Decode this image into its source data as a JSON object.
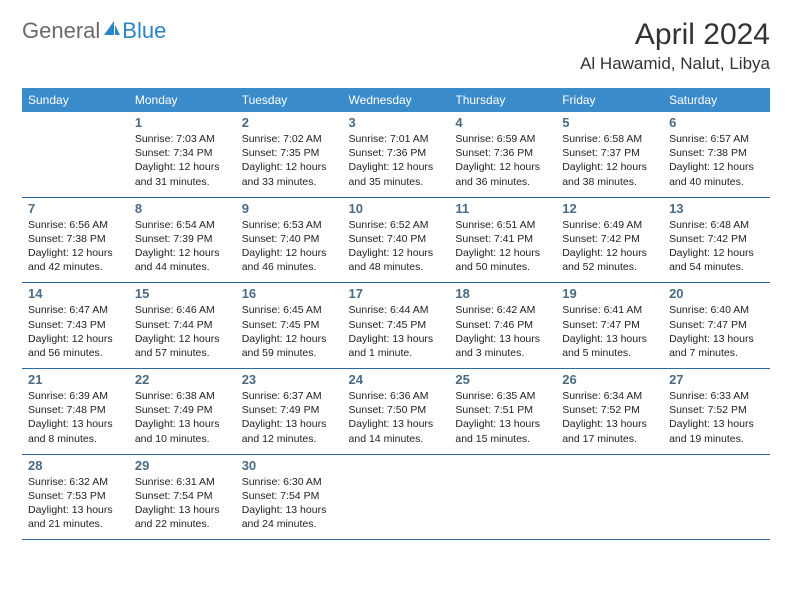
{
  "logo": {
    "text_general": "General",
    "text_blue": "Blue",
    "icon_color": "#2b85c5"
  },
  "title": {
    "month": "April 2024",
    "location": "Al Hawamid, Nalut, Libya"
  },
  "colors": {
    "header_bg": "#3a8bc9",
    "header_text": "#ffffff",
    "row_border": "#2b6a9e",
    "day_num": "#4a6a85",
    "body_text": "#222222",
    "title_text": "#333333",
    "logo_gray": "#6b6b6b",
    "logo_blue": "#2b85c5"
  },
  "weekdays": [
    "Sunday",
    "Monday",
    "Tuesday",
    "Wednesday",
    "Thursday",
    "Friday",
    "Saturday"
  ],
  "weeks": [
    [
      {
        "day": "",
        "sunrise": "",
        "sunset": "",
        "daylight1": "",
        "daylight2": ""
      },
      {
        "day": "1",
        "sunrise": "Sunrise: 7:03 AM",
        "sunset": "Sunset: 7:34 PM",
        "daylight1": "Daylight: 12 hours",
        "daylight2": "and 31 minutes."
      },
      {
        "day": "2",
        "sunrise": "Sunrise: 7:02 AM",
        "sunset": "Sunset: 7:35 PM",
        "daylight1": "Daylight: 12 hours",
        "daylight2": "and 33 minutes."
      },
      {
        "day": "3",
        "sunrise": "Sunrise: 7:01 AM",
        "sunset": "Sunset: 7:36 PM",
        "daylight1": "Daylight: 12 hours",
        "daylight2": "and 35 minutes."
      },
      {
        "day": "4",
        "sunrise": "Sunrise: 6:59 AM",
        "sunset": "Sunset: 7:36 PM",
        "daylight1": "Daylight: 12 hours",
        "daylight2": "and 36 minutes."
      },
      {
        "day": "5",
        "sunrise": "Sunrise: 6:58 AM",
        "sunset": "Sunset: 7:37 PM",
        "daylight1": "Daylight: 12 hours",
        "daylight2": "and 38 minutes."
      },
      {
        "day": "6",
        "sunrise": "Sunrise: 6:57 AM",
        "sunset": "Sunset: 7:38 PM",
        "daylight1": "Daylight: 12 hours",
        "daylight2": "and 40 minutes."
      }
    ],
    [
      {
        "day": "7",
        "sunrise": "Sunrise: 6:56 AM",
        "sunset": "Sunset: 7:38 PM",
        "daylight1": "Daylight: 12 hours",
        "daylight2": "and 42 minutes."
      },
      {
        "day": "8",
        "sunrise": "Sunrise: 6:54 AM",
        "sunset": "Sunset: 7:39 PM",
        "daylight1": "Daylight: 12 hours",
        "daylight2": "and 44 minutes."
      },
      {
        "day": "9",
        "sunrise": "Sunrise: 6:53 AM",
        "sunset": "Sunset: 7:40 PM",
        "daylight1": "Daylight: 12 hours",
        "daylight2": "and 46 minutes."
      },
      {
        "day": "10",
        "sunrise": "Sunrise: 6:52 AM",
        "sunset": "Sunset: 7:40 PM",
        "daylight1": "Daylight: 12 hours",
        "daylight2": "and 48 minutes."
      },
      {
        "day": "11",
        "sunrise": "Sunrise: 6:51 AM",
        "sunset": "Sunset: 7:41 PM",
        "daylight1": "Daylight: 12 hours",
        "daylight2": "and 50 minutes."
      },
      {
        "day": "12",
        "sunrise": "Sunrise: 6:49 AM",
        "sunset": "Sunset: 7:42 PM",
        "daylight1": "Daylight: 12 hours",
        "daylight2": "and 52 minutes."
      },
      {
        "day": "13",
        "sunrise": "Sunrise: 6:48 AM",
        "sunset": "Sunset: 7:42 PM",
        "daylight1": "Daylight: 12 hours",
        "daylight2": "and 54 minutes."
      }
    ],
    [
      {
        "day": "14",
        "sunrise": "Sunrise: 6:47 AM",
        "sunset": "Sunset: 7:43 PM",
        "daylight1": "Daylight: 12 hours",
        "daylight2": "and 56 minutes."
      },
      {
        "day": "15",
        "sunrise": "Sunrise: 6:46 AM",
        "sunset": "Sunset: 7:44 PM",
        "daylight1": "Daylight: 12 hours",
        "daylight2": "and 57 minutes."
      },
      {
        "day": "16",
        "sunrise": "Sunrise: 6:45 AM",
        "sunset": "Sunset: 7:45 PM",
        "daylight1": "Daylight: 12 hours",
        "daylight2": "and 59 minutes."
      },
      {
        "day": "17",
        "sunrise": "Sunrise: 6:44 AM",
        "sunset": "Sunset: 7:45 PM",
        "daylight1": "Daylight: 13 hours",
        "daylight2": "and 1 minute."
      },
      {
        "day": "18",
        "sunrise": "Sunrise: 6:42 AM",
        "sunset": "Sunset: 7:46 PM",
        "daylight1": "Daylight: 13 hours",
        "daylight2": "and 3 minutes."
      },
      {
        "day": "19",
        "sunrise": "Sunrise: 6:41 AM",
        "sunset": "Sunset: 7:47 PM",
        "daylight1": "Daylight: 13 hours",
        "daylight2": "and 5 minutes."
      },
      {
        "day": "20",
        "sunrise": "Sunrise: 6:40 AM",
        "sunset": "Sunset: 7:47 PM",
        "daylight1": "Daylight: 13 hours",
        "daylight2": "and 7 minutes."
      }
    ],
    [
      {
        "day": "21",
        "sunrise": "Sunrise: 6:39 AM",
        "sunset": "Sunset: 7:48 PM",
        "daylight1": "Daylight: 13 hours",
        "daylight2": "and 8 minutes."
      },
      {
        "day": "22",
        "sunrise": "Sunrise: 6:38 AM",
        "sunset": "Sunset: 7:49 PM",
        "daylight1": "Daylight: 13 hours",
        "daylight2": "and 10 minutes."
      },
      {
        "day": "23",
        "sunrise": "Sunrise: 6:37 AM",
        "sunset": "Sunset: 7:49 PM",
        "daylight1": "Daylight: 13 hours",
        "daylight2": "and 12 minutes."
      },
      {
        "day": "24",
        "sunrise": "Sunrise: 6:36 AM",
        "sunset": "Sunset: 7:50 PM",
        "daylight1": "Daylight: 13 hours",
        "daylight2": "and 14 minutes."
      },
      {
        "day": "25",
        "sunrise": "Sunrise: 6:35 AM",
        "sunset": "Sunset: 7:51 PM",
        "daylight1": "Daylight: 13 hours",
        "daylight2": "and 15 minutes."
      },
      {
        "day": "26",
        "sunrise": "Sunrise: 6:34 AM",
        "sunset": "Sunset: 7:52 PM",
        "daylight1": "Daylight: 13 hours",
        "daylight2": "and 17 minutes."
      },
      {
        "day": "27",
        "sunrise": "Sunrise: 6:33 AM",
        "sunset": "Sunset: 7:52 PM",
        "daylight1": "Daylight: 13 hours",
        "daylight2": "and 19 minutes."
      }
    ],
    [
      {
        "day": "28",
        "sunrise": "Sunrise: 6:32 AM",
        "sunset": "Sunset: 7:53 PM",
        "daylight1": "Daylight: 13 hours",
        "daylight2": "and 21 minutes."
      },
      {
        "day": "29",
        "sunrise": "Sunrise: 6:31 AM",
        "sunset": "Sunset: 7:54 PM",
        "daylight1": "Daylight: 13 hours",
        "daylight2": "and 22 minutes."
      },
      {
        "day": "30",
        "sunrise": "Sunrise: 6:30 AM",
        "sunset": "Sunset: 7:54 PM",
        "daylight1": "Daylight: 13 hours",
        "daylight2": "and 24 minutes."
      },
      {
        "day": "",
        "sunrise": "",
        "sunset": "",
        "daylight1": "",
        "daylight2": ""
      },
      {
        "day": "",
        "sunrise": "",
        "sunset": "",
        "daylight1": "",
        "daylight2": ""
      },
      {
        "day": "",
        "sunrise": "",
        "sunset": "",
        "daylight1": "",
        "daylight2": ""
      },
      {
        "day": "",
        "sunrise": "",
        "sunset": "",
        "daylight1": "",
        "daylight2": ""
      }
    ]
  ]
}
